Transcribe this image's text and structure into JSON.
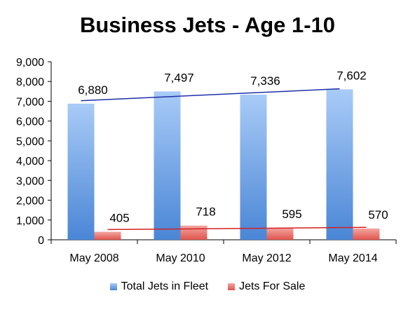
{
  "chart_data": {
    "type": "bar",
    "title": "Business Jets - Age 1-10",
    "categories": [
      "May 2008",
      "May 2010",
      "May 2012",
      "May 2014"
    ],
    "series": [
      {
        "name": "Total Jets in Fleet",
        "values": [
          6880,
          7497,
          7336,
          7602
        ],
        "color": "#5a95db"
      },
      {
        "name": "Jets For Sale",
        "values": [
          405,
          718,
          595,
          570
        ],
        "color": "#e8635d"
      }
    ],
    "data_labels": {
      "Total Jets in Fleet": [
        "6,880",
        "7,497",
        "7,336",
        "7,602"
      ],
      "Jets For Sale": [
        "405",
        "718",
        "595",
        "570"
      ]
    },
    "trendlines": [
      {
        "series": "Total Jets in Fleet",
        "color": "#1f2fa8"
      },
      {
        "series": "Jets For Sale",
        "color": "#d42020"
      }
    ],
    "ylim": [
      0,
      9000
    ],
    "yticks": [
      0,
      1000,
      2000,
      3000,
      4000,
      5000,
      6000,
      7000,
      8000,
      9000
    ],
    "ytick_labels": [
      "0",
      "1,000",
      "2,000",
      "3,000",
      "4,000",
      "5,000",
      "6,000",
      "7,000",
      "8,000",
      "9,000"
    ],
    "xlabel": "",
    "ylabel": "",
    "grid": false,
    "legend_position": "bottom"
  }
}
